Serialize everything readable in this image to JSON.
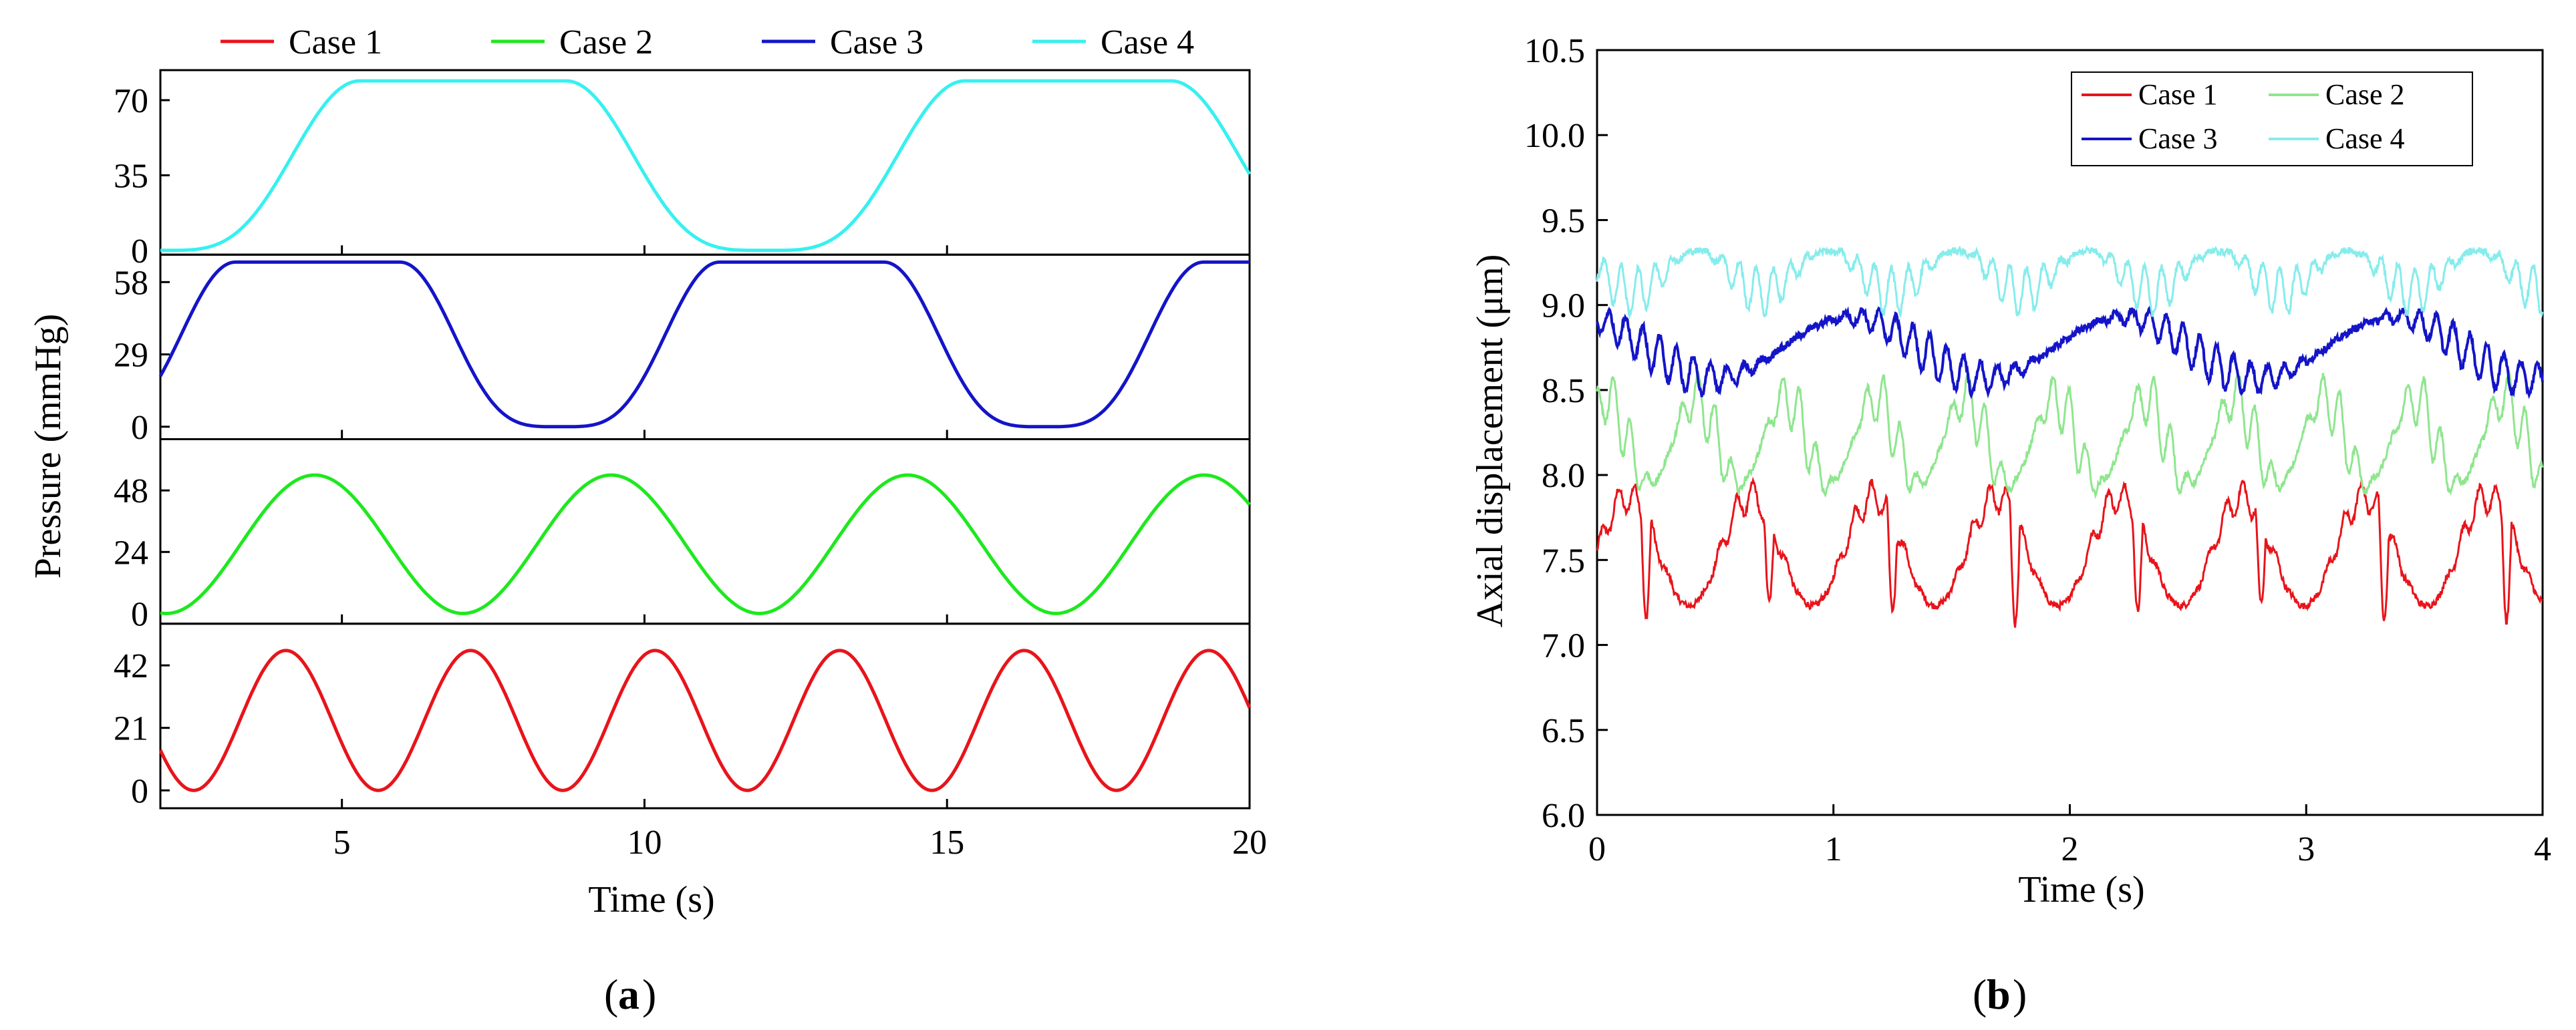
{
  "colors": {
    "case1": "#e8141b",
    "case2": "#1ee81e",
    "case3": "#1414c8",
    "case4": "#37f0f0",
    "case1_b": "#e8141b",
    "case2_b": "#8ee68e",
    "case3_b": "#1414c8",
    "case4_b": "#86ecec",
    "axis": "#000000"
  },
  "legend_a": [
    "Case 1",
    "Case 2",
    "Case 3",
    "Case 4"
  ],
  "legend_b": [
    "Case 1",
    "Case 2",
    "Case 3",
    "Case 4"
  ],
  "panel_labels": {
    "a": "a",
    "b": "b"
  },
  "chart_data": [
    {
      "id": "a",
      "type": "line",
      "shared_x": {
        "label": "Time (s)",
        "xlim": [
          2,
          20
        ],
        "ticks": [
          "5",
          "10",
          "15",
          "20"
        ],
        "tick_values": [
          5,
          10,
          15,
          20
        ]
      },
      "ylabel": "Pressure (mmHg)",
      "subplots": [
        {
          "series": "Case 4",
          "ylim": [
            -2,
            84
          ],
          "yticks": [
            0,
            35,
            70
          ],
          "ytick_labels": [
            "0",
            "35",
            "70"
          ],
          "period": 10,
          "max": 79,
          "min": 0,
          "phase": 2.0,
          "shape": "plateau"
        },
        {
          "series": "Case 3",
          "ylim": [
            -5,
            69
          ],
          "yticks": [
            0,
            29,
            58
          ],
          "ytick_labels": [
            "0",
            "29",
            "58"
          ],
          "period": 8,
          "max": 66,
          "min": 0,
          "phase": 0.6,
          "shape": "plateau"
        },
        {
          "series": "Case 2",
          "ylim": [
            -4,
            68
          ],
          "yticks": [
            0,
            24,
            48
          ],
          "ytick_labels": [
            "0",
            "24",
            "48"
          ],
          "period": 4.9,
          "max": 54,
          "min": 0,
          "phase": 2.1,
          "shape": "sine"
        },
        {
          "series": "Case 1",
          "ylim": [
            -6,
            56
          ],
          "yticks": [
            0,
            21,
            42
          ],
          "ytick_labels": [
            "0",
            "21",
            "42"
          ],
          "period": 3.05,
          "max": 47,
          "min": 0,
          "phase": 2.55,
          "shape": "sine"
        }
      ]
    },
    {
      "id": "b",
      "type": "line",
      "title": "",
      "xlabel": "Time (s)",
      "ylabel": "Axial displacement (μm)",
      "xlim": [
        0,
        4
      ],
      "ylim": [
        6.0,
        10.5
      ],
      "xticks": [
        "0",
        "1",
        "2",
        "3",
        "4"
      ],
      "xtick_values": [
        0,
        1,
        2,
        3,
        4
      ],
      "yticks": [
        "6.0",
        "6.5",
        "7.0",
        "7.5",
        "8.0",
        "8.5",
        "9.0",
        "9.5",
        "10.0",
        "10.5"
      ],
      "ytick_values": [
        6.0,
        6.5,
        7.0,
        7.5,
        8.0,
        8.5,
        9.0,
        9.5,
        10.0,
        10.5
      ],
      "series": [
        {
          "name": "Case 1",
          "base": 7.55,
          "amp": 0.32,
          "period": 0.52,
          "spike": -0.55,
          "wiggle": 0.09
        },
        {
          "name": "Case 2",
          "base": 8.2,
          "amp": 0.25,
          "period": 0.38,
          "spike": 0.0,
          "wiggle": 0.18
        },
        {
          "name": "Case 3",
          "base": 8.75,
          "amp": 0.18,
          "period": 1.15,
          "spike": 0.0,
          "wiggle": 0.12
        },
        {
          "name": "Case 4",
          "base": 9.2,
          "amp": 0.12,
          "period": 0.55,
          "spike": 0.0,
          "wiggle": 0.14
        }
      ]
    }
  ]
}
